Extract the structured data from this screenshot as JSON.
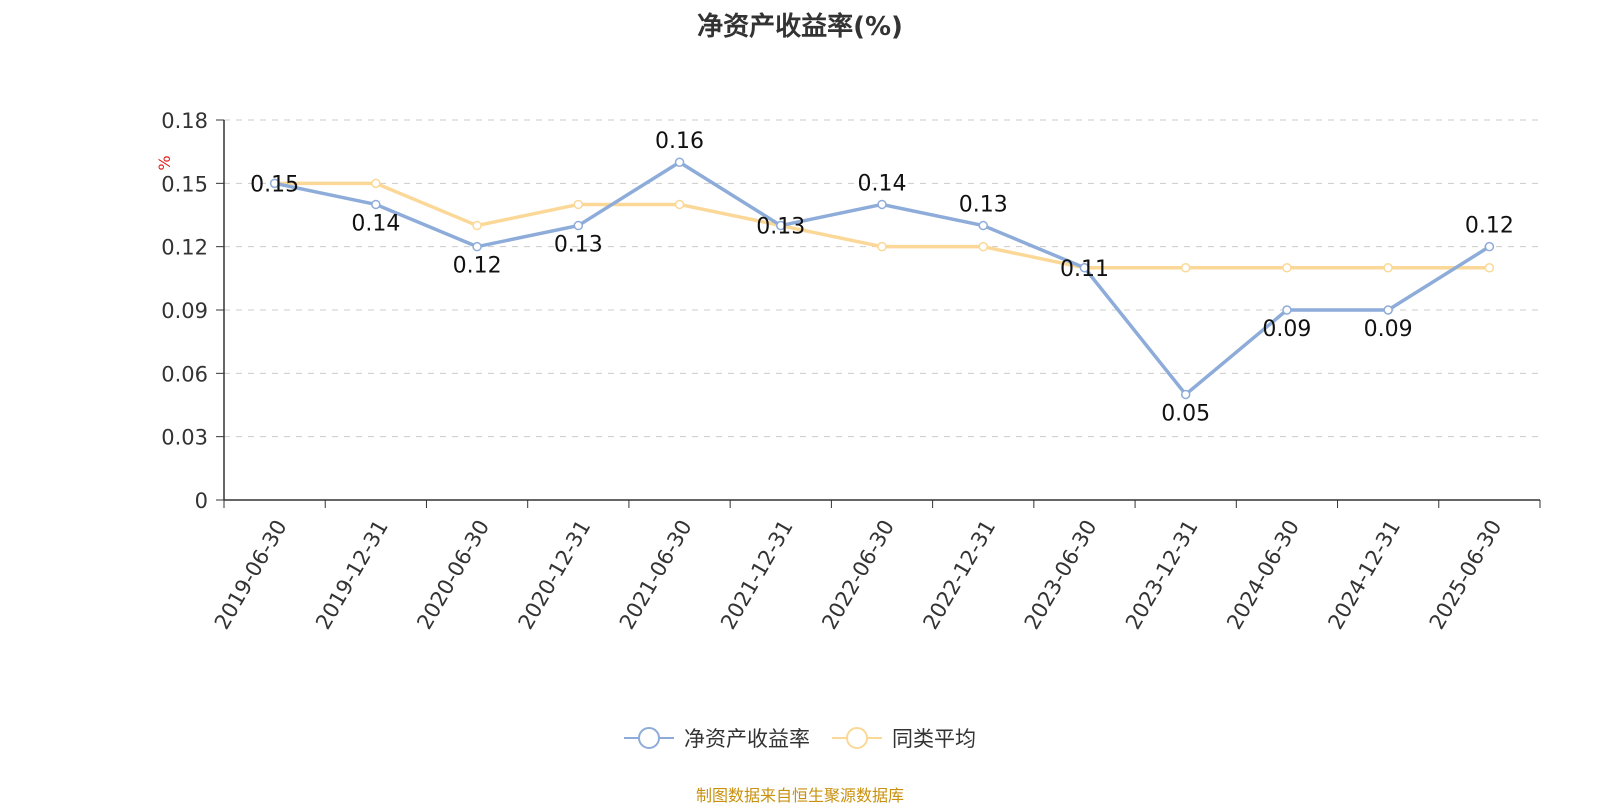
{
  "title": "净资产收益率(%)",
  "footer": "制图数据来自恒生聚源数据库",
  "colors": {
    "series1": "#8eacd9",
    "series2": "#fbd897",
    "unit": "#e02020",
    "source": "#c9900e"
  },
  "chart_data": {
    "type": "line",
    "ylabel": "%",
    "ylim": [
      0,
      0.18
    ],
    "yticks": [
      "0",
      "0.03",
      "0.06",
      "0.09",
      "0.12",
      "0.15",
      "0.18"
    ],
    "grid": true,
    "legend_position": "bottom",
    "categories": [
      "2019-06-30",
      "2019-12-31",
      "2020-06-30",
      "2020-12-31",
      "2021-06-30",
      "2021-12-31",
      "2022-06-30",
      "2022-12-31",
      "2023-06-30",
      "2023-12-31",
      "2024-06-30",
      "2024-12-31",
      "2025-06-30"
    ],
    "series": [
      {
        "name": "净资产收益率",
        "values": [
          0.15,
          0.14,
          0.12,
          0.13,
          0.16,
          0.13,
          0.14,
          0.13,
          0.11,
          0.05,
          0.09,
          0.09,
          0.12
        ],
        "labels": [
          "0.15",
          "0.14",
          "0.12",
          "0.13",
          "0.16",
          "0.13",
          "0.14",
          "0.13",
          "0.11",
          "0.05",
          "0.09",
          "0.09",
          "0.12"
        ]
      },
      {
        "name": "同类平均",
        "values": [
          0.15,
          0.15,
          0.13,
          0.14,
          0.14,
          0.13,
          0.12,
          0.12,
          0.11,
          0.11,
          0.11,
          0.11,
          0.11
        ]
      }
    ]
  }
}
